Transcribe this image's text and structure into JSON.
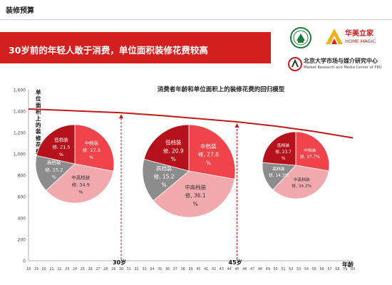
{
  "header": {
    "section_title": "装修预算",
    "banner_text": "30岁前的年轻人敢于消费，单位面积装修花费较高"
  },
  "logos": {
    "home_magic_cn": "华美立家",
    "home_magic_en": "HOME MAGIC",
    "pku_cn": "北京大学市场与媒介研究中心",
    "pku_en": "Market Research and Media Center of PKU"
  },
  "colors": {
    "banner": "#d41f1f",
    "curve": "#c21b1b",
    "low": "#b5121b",
    "mid": "#f0434a",
    "midhigh": "#f1a9ae",
    "high": "#8c8c8c"
  },
  "chart_data": {
    "type": "line",
    "title": "消费者年龄和单位面积上的装修花费的回归模型",
    "ylabel": "单位面积上的装修花费",
    "xlabel": "年龄",
    "x": [
      18,
      20,
      25,
      30,
      35,
      40,
      45,
      50,
      55,
      60
    ],
    "y": [
      1420,
      1415,
      1400,
      1385,
      1360,
      1330,
      1300,
      1260,
      1210,
      1150
    ],
    "xlim": [
      18,
      60
    ],
    "ylim": [
      0,
      1600
    ],
    "xticks": [
      18,
      19,
      20,
      21,
      22,
      23,
      24,
      25,
      26,
      27,
      28,
      29,
      30,
      31,
      32,
      33,
      34,
      35,
      36,
      37,
      38,
      39,
      40,
      41,
      42,
      43,
      44,
      45,
      46,
      47,
      48,
      49,
      50,
      51,
      52,
      53,
      54,
      55,
      56,
      57,
      58,
      59,
      60
    ],
    "yticks": [
      0,
      200,
      400,
      600,
      800,
      1000,
      1200,
      1400,
      1600
    ],
    "markers": [
      {
        "age": 30,
        "label": "30岁"
      },
      {
        "age": 45,
        "label": "45岁"
      }
    ],
    "pies": [
      {
        "name": "pie-under-30",
        "slices": [
          {
            "key": "low",
            "line1": "低档装",
            "line2": "修, 21.5",
            "line3": "%",
            "value": 21.5
          },
          {
            "key": "mid",
            "line1": "中档装",
            "line2": "修, 27.9",
            "line3": "%",
            "value": 27.9
          },
          {
            "key": "midhigh",
            "line1": "中高档装",
            "line2": "修, 34.9",
            "line3": "%",
            "value": 34.9
          },
          {
            "key": "high",
            "line1": "高档装",
            "line2": "修, 15.2",
            "line3": "%",
            "value": 15.2
          }
        ]
      },
      {
        "name": "pie-30-45",
        "slices": [
          {
            "key": "low",
            "line1": "低档装",
            "line2": "修, 20.9",
            "line3": "%",
            "value": 20.9
          },
          {
            "key": "mid",
            "line1": "中档装",
            "line2": "修, 27.8",
            "line3": "%",
            "value": 27.8
          },
          {
            "key": "midhigh",
            "line1": "中高档装",
            "line2": "修, 36.1",
            "line3": "%",
            "value": 36.1
          },
          {
            "key": "high",
            "line1": "高档装",
            "line2": "修, 15.2",
            "line3": "%",
            "value": 15.2
          }
        ]
      },
      {
        "name": "pie-over-45",
        "slices": [
          {
            "key": "low",
            "line1": "低档装",
            "line2": "修, 23.7",
            "line3": "%",
            "value": 23.7
          },
          {
            "key": "mid",
            "line1": "中档装",
            "line2": "修, 27.7%",
            "line3": "",
            "value": 27.7
          },
          {
            "key": "midhigh",
            "line1": "中高档装",
            "line2": "修, 34.3%",
            "line3": "",
            "value": 34.3
          },
          {
            "key": "high",
            "line1": "高档装",
            "line2": "修, 14.3%",
            "line3": "",
            "value": 14.3
          }
        ]
      }
    ]
  }
}
